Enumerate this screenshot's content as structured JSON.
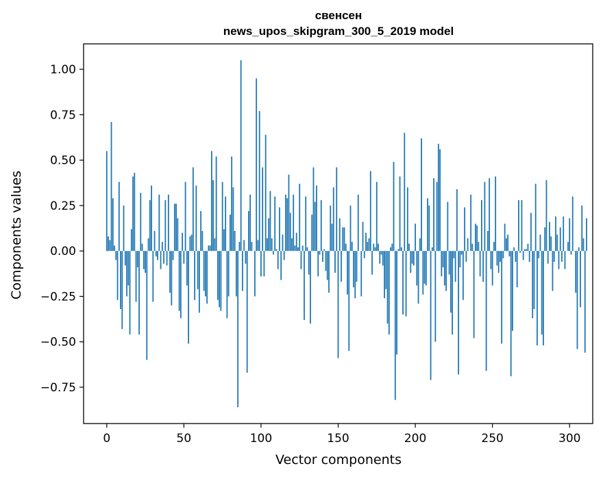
{
  "chart_data": {
    "type": "bar",
    "title": "свенсен",
    "subtitle": "news_upos_skipgram_300_5_2019 model",
    "xlabel": "Vector components",
    "ylabel": "Components values",
    "xlim": [
      -15,
      315
    ],
    "ylim": [
      -0.95,
      1.14
    ],
    "xticks": [
      0,
      50,
      100,
      150,
      200,
      250,
      300
    ],
    "yticks": [
      -0.75,
      -0.5,
      -0.25,
      0.0,
      0.25,
      0.5,
      0.75,
      1.0
    ],
    "ytick_labels": [
      "−0.75",
      "−0.50",
      "−0.25",
      "0.00",
      "0.25",
      "0.50",
      "0.75",
      "1.00"
    ],
    "xtick_labels": [
      "0",
      "50",
      "100",
      "150",
      "200",
      "250",
      "300"
    ],
    "bar_color": "#1f77b4",
    "values": [
      0.55,
      0.08,
      0.06,
      0.71,
      0.29,
      0.03,
      -0.05,
      -0.27,
      0.38,
      -0.32,
      -0.43,
      0.25,
      -0.08,
      -0.25,
      -0.19,
      -0.46,
      0.12,
      0.41,
      0.43,
      -0.28,
      -0.09,
      -0.46,
      0.32,
      0.04,
      -0.1,
      -0.12,
      -0.6,
      0.07,
      0.28,
      0.36,
      -0.28,
      0.11,
      -0.03,
      -0.05,
      0.31,
      -0.1,
      0.05,
      -0.07,
      0.28,
      -0.08,
      0.31,
      -0.23,
      -0.3,
      -0.05,
      0.26,
      0.26,
      0.18,
      -0.33,
      -0.37,
      0.1,
      -0.07,
      0.38,
      -0.19,
      -0.51,
      0.08,
      0.09,
      0.46,
      -0.27,
      0.36,
      -0.21,
      -0.34,
      0.22,
      0.11,
      -0.22,
      -0.25,
      -0.29,
      0.03,
      0.03,
      0.55,
      0.39,
      0.07,
      0.52,
      -0.27,
      -0.31,
      -0.33,
      0.38,
      0.12,
      0.3,
      -0.37,
      -0.25,
      0.2,
      0.52,
      0.35,
      0.11,
      -0.25,
      -0.86,
      0.05,
      1.05,
      -0.22,
      0.06,
      -0.07,
      -0.67,
      0.22,
      0.31,
      0.05,
      0.0,
      -0.25,
      0.95,
      0.06,
      0.77,
      -0.14,
      0.46,
      -0.14,
      0.64,
      0.07,
      0.18,
      0.33,
      0.07,
      -0.02,
      0.3,
      0.01,
      -0.1,
      0.24,
      -0.16,
      0.09,
      -0.05,
      0.31,
      0.29,
      0.42,
      0.21,
      0.07,
      0.31,
      0.03,
      0.1,
      0.02,
      0.37,
      -0.1,
      0.03,
      -0.38,
      0.3,
      0.02,
      -0.13,
      -0.4,
      0.2,
      0.46,
      0.27,
      0.36,
      -0.14,
      -0.02,
      0.28,
      -0.06,
      0.01,
      -0.11,
      -0.16,
      -0.23,
      0.25,
      0.15,
      0.35,
      -0.12,
      0.46,
      -0.59,
      0.18,
      -0.17,
      0.13,
      0.13,
      0.04,
      -0.24,
      -0.55,
      0.25,
      0.05,
      -0.2,
      -0.26,
      -0.17,
      0.31,
      0.0,
      -0.25,
      0.16,
      -0.04,
      0.1,
      0.05,
      0.07,
      0.44,
      -0.13,
      0.04,
      0.02,
      0.38,
      0.04,
      -0.07,
      -0.02,
      -0.08,
      -0.26,
      -0.21,
      -0.4,
      -0.46,
      0.02,
      0.04,
      0.49,
      -0.82,
      -0.57,
      0.01,
      0.41,
      0.02,
      -0.35,
      0.65,
      -0.36,
      0.35,
      0.04,
      -0.12,
      -0.07,
      -0.08,
      0.15,
      -0.19,
      -0.29,
      0.07,
      0.62,
      -0.24,
      -0.18,
      -0.19,
      0.29,
      0.25,
      -0.71,
      0.02,
      0.4,
      -0.5,
      0.38,
      0.59,
      0.56,
      -0.14,
      -0.09,
      -0.19,
      -0.22,
      0.27,
      -0.13,
      -0.34,
      -0.46,
      -0.04,
      -0.17,
      0.34,
      -0.68,
      -0.09,
      -0.02,
      -0.27,
      0.24,
      -0.06,
      0.07,
      0.0,
      0.31,
      0.04,
      -0.48,
      0.15,
      0.14,
      0.05,
      -0.14,
      0.28,
      -0.17,
      0.38,
      -0.66,
      0.11,
      0.4,
      -0.1,
      -0.19,
      0.05,
      0.41,
      -0.08,
      -0.12,
      -0.06,
      -0.51,
      -0.04,
      0.15,
      0.07,
      0.09,
      -0.03,
      -0.69,
      -0.44,
      0.02,
      -0.06,
      -0.2,
      0.28,
      -0.01,
      0.28,
      -0.05,
      0.01,
      0.01,
      0.04,
      -0.06,
      0.21,
      -0.37,
      -0.32,
      0.37,
      -0.52,
      -0.04,
      0.09,
      -0.46,
      -0.52,
      0.13,
      0.39,
      -0.07,
      0.16,
      0.08,
      -0.22,
      -0.06,
      0.19,
      0.09,
      -0.1,
      0.13,
      -0.06,
      0.19,
      -0.1,
      0.0,
      0.05,
      0.18,
      -0.02,
      0.3,
      0.0,
      -0.23,
      -0.54,
      0.02,
      -0.31,
      0.25,
      0.07,
      -0.56,
      0.18,
      0.0
    ]
  }
}
